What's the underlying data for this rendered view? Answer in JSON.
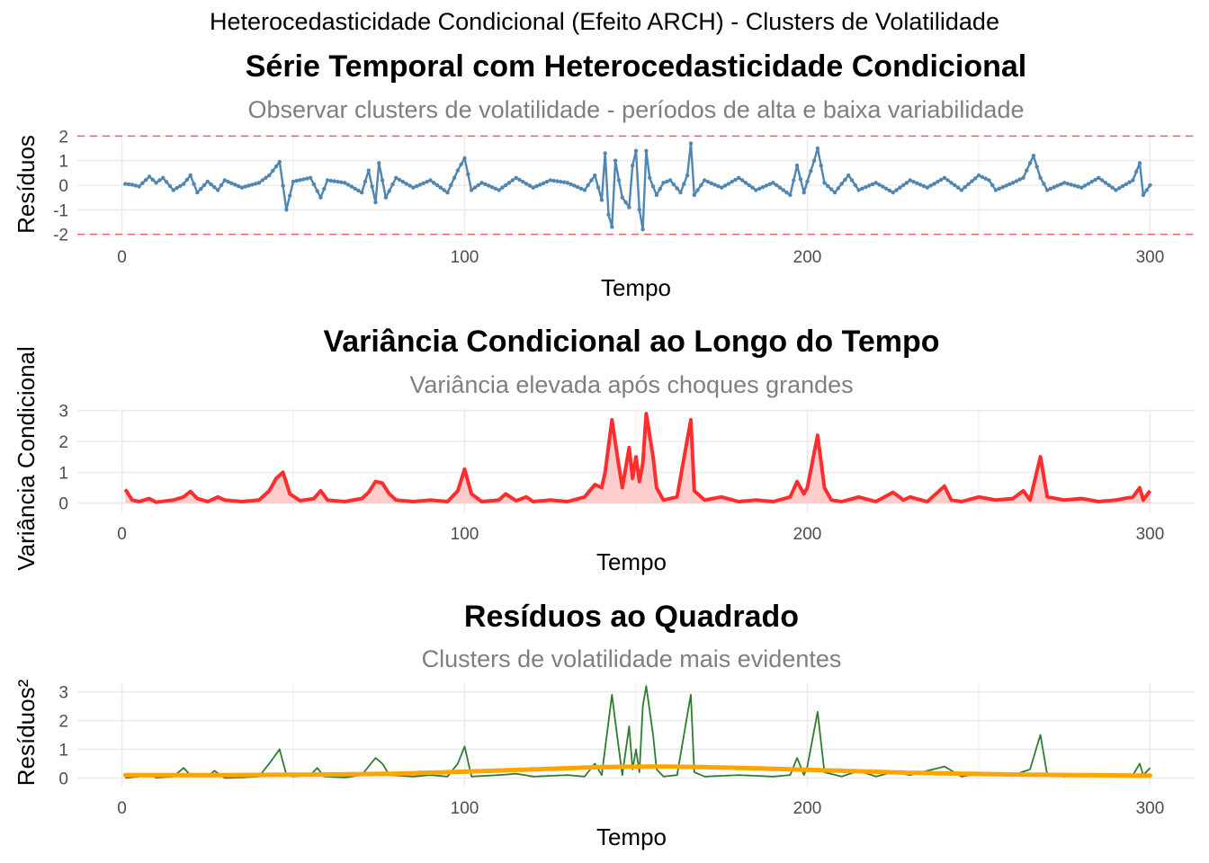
{
  "figure_title": "Heterocedasticidade Condicional (Efeito ARCH) - Clusters de Volatilidade",
  "colors": {
    "residual_line": "#4F86B2",
    "variance_line": "#FF2D2D",
    "variance_fill": "#FFC7C7",
    "squared_line": "#2E7D2E",
    "smooth_line": "#FFA500",
    "smooth_band": "#C8C8C8",
    "ref_line": "#F06060",
    "grid": "#EBEBEB",
    "title": "#000000",
    "subtitle": "#7F7F7F",
    "tick": "#4D4D4D"
  },
  "chart_data": [
    {
      "type": "line",
      "title": "Série Temporal com Heterocedasticidade Condicional",
      "subtitle": "Observar clusters de volatilidade - períodos de alta e baixa variabilidade",
      "xlabel": "Tempo",
      "ylabel": "Resíduos",
      "xlim": [
        -13,
        313
      ],
      "ylim": [
        -2.05,
        2.05
      ],
      "xticks": [
        0,
        100,
        200,
        300
      ],
      "yticks": [
        -2,
        -1,
        0,
        1,
        2
      ],
      "grid": true,
      "markers": true,
      "reference_lines": [
        2,
        -2
      ],
      "key_points": [
        [
          1,
          0.05
        ],
        [
          3,
          0.02
        ],
        [
          5,
          -0.05
        ],
        [
          8,
          0.35
        ],
        [
          10,
          0.1
        ],
        [
          12,
          0.3
        ],
        [
          15,
          -0.2
        ],
        [
          18,
          0.05
        ],
        [
          20,
          0.4
        ],
        [
          22,
          -0.3
        ],
        [
          25,
          0.15
        ],
        [
          28,
          -0.2
        ],
        [
          30,
          0.2
        ],
        [
          35,
          -0.1
        ],
        [
          40,
          0.1
        ],
        [
          43,
          0.4
        ],
        [
          46,
          0.95
        ],
        [
          48,
          -1.0
        ],
        [
          50,
          0.15
        ],
        [
          55,
          0.3
        ],
        [
          58,
          -0.5
        ],
        [
          60,
          0.2
        ],
        [
          65,
          0.1
        ],
        [
          70,
          -0.3
        ],
        [
          72,
          0.6
        ],
        [
          74,
          -0.7
        ],
        [
          75,
          0.9
        ],
        [
          77,
          -0.5
        ],
        [
          80,
          0.3
        ],
        [
          85,
          -0.1
        ],
        [
          90,
          0.2
        ],
        [
          95,
          -0.3
        ],
        [
          98,
          0.6
        ],
        [
          100,
          1.1
        ],
        [
          102,
          -0.2
        ],
        [
          105,
          0.1
        ],
        [
          110,
          -0.2
        ],
        [
          115,
          0.3
        ],
        [
          120,
          -0.1
        ],
        [
          125,
          0.2
        ],
        [
          130,
          0.1
        ],
        [
          135,
          -0.2
        ],
        [
          138,
          0.4
        ],
        [
          140,
          -0.6
        ],
        [
          141,
          1.3
        ],
        [
          142,
          -1.2
        ],
        [
          143,
          -1.7
        ],
        [
          144,
          1.0
        ],
        [
          145,
          0.2
        ],
        [
          146,
          -0.5
        ],
        [
          148,
          -0.9
        ],
        [
          149,
          0.8
        ],
        [
          150,
          1.4
        ],
        [
          151,
          -1.0
        ],
        [
          152,
          -1.8
        ],
        [
          153,
          1.4
        ],
        [
          154,
          0.3
        ],
        [
          156,
          -0.4
        ],
        [
          158,
          0.1
        ],
        [
          160,
          0.2
        ],
        [
          163,
          -0.3
        ],
        [
          165,
          0.4
        ],
        [
          166,
          1.7
        ],
        [
          167,
          -0.4
        ],
        [
          170,
          0.2
        ],
        [
          175,
          -0.1
        ],
        [
          180,
          0.3
        ],
        [
          185,
          -0.2
        ],
        [
          190,
          0.1
        ],
        [
          195,
          -0.4
        ],
        [
          197,
          0.8
        ],
        [
          199,
          -0.3
        ],
        [
          200,
          0.15
        ],
        [
          202,
          1.0
        ],
        [
          203,
          1.5
        ],
        [
          205,
          0.1
        ],
        [
          208,
          -0.3
        ],
        [
          212,
          0.4
        ],
        [
          215,
          -0.2
        ],
        [
          220,
          0.1
        ],
        [
          225,
          -0.3
        ],
        [
          230,
          0.2
        ],
        [
          235,
          -0.1
        ],
        [
          240,
          0.3
        ],
        [
          245,
          -0.2
        ],
        [
          250,
          0.4
        ],
        [
          253,
          0.2
        ],
        [
          255,
          -0.2
        ],
        [
          260,
          0.1
        ],
        [
          263,
          0.3
        ],
        [
          266,
          1.2
        ],
        [
          268,
          0.3
        ],
        [
          270,
          -0.2
        ],
        [
          275,
          0.1
        ],
        [
          280,
          -0.1
        ],
        [
          285,
          0.3
        ],
        [
          290,
          -0.2
        ],
        [
          295,
          0.2
        ],
        [
          297,
          0.9
        ],
        [
          298,
          -0.4
        ],
        [
          300,
          0.0
        ]
      ]
    },
    {
      "type": "area",
      "title": "Variância Condicional ao Longo do Tempo",
      "subtitle": "Variância elevada após choques grandes",
      "xlabel": "Tempo",
      "ylabel": "Variância Condicional",
      "xlim": [
        -13,
        313
      ],
      "ylim": [
        -0.3,
        3.05
      ],
      "xticks": [
        0,
        100,
        200,
        300
      ],
      "yticks": [
        0,
        1,
        2,
        3
      ],
      "grid": true,
      "key_points": [
        [
          1,
          0.45
        ],
        [
          3,
          0.1
        ],
        [
          5,
          0.05
        ],
        [
          8,
          0.15
        ],
        [
          10,
          0.03
        ],
        [
          15,
          0.1
        ],
        [
          18,
          0.2
        ],
        [
          20,
          0.38
        ],
        [
          22,
          0.15
        ],
        [
          25,
          0.05
        ],
        [
          28,
          0.2
        ],
        [
          30,
          0.1
        ],
        [
          35,
          0.05
        ],
        [
          40,
          0.1
        ],
        [
          43,
          0.4
        ],
        [
          45,
          0.8
        ],
        [
          47,
          1.0
        ],
        [
          49,
          0.3
        ],
        [
          52,
          0.08
        ],
        [
          56,
          0.15
        ],
        [
          58,
          0.4
        ],
        [
          60,
          0.1
        ],
        [
          65,
          0.05
        ],
        [
          70,
          0.15
        ],
        [
          72,
          0.35
        ],
        [
          74,
          0.7
        ],
        [
          76,
          0.65
        ],
        [
          78,
          0.3
        ],
        [
          80,
          0.1
        ],
        [
          85,
          0.05
        ],
        [
          90,
          0.1
        ],
        [
          95,
          0.05
        ],
        [
          98,
          0.4
        ],
        [
          100,
          1.1
        ],
        [
          102,
          0.3
        ],
        [
          105,
          0.05
        ],
        [
          110,
          0.1
        ],
        [
          112,
          0.3
        ],
        [
          115,
          0.08
        ],
        [
          118,
          0.2
        ],
        [
          120,
          0.05
        ],
        [
          125,
          0.1
        ],
        [
          130,
          0.05
        ],
        [
          135,
          0.2
        ],
        [
          138,
          0.6
        ],
        [
          140,
          0.5
        ],
        [
          141,
          1.0
        ],
        [
          143,
          2.7
        ],
        [
          145,
          1.2
        ],
        [
          146,
          0.5
        ],
        [
          148,
          1.8
        ],
        [
          149,
          0.8
        ],
        [
          150,
          1.5
        ],
        [
          151,
          0.7
        ],
        [
          152,
          1.3
        ],
        [
          153,
          2.9
        ],
        [
          155,
          1.5
        ],
        [
          156,
          0.5
        ],
        [
          158,
          0.1
        ],
        [
          162,
          0.2
        ],
        [
          166,
          2.7
        ],
        [
          167,
          0.4
        ],
        [
          170,
          0.1
        ],
        [
          175,
          0.2
        ],
        [
          180,
          0.05
        ],
        [
          185,
          0.1
        ],
        [
          190,
          0.05
        ],
        [
          195,
          0.2
        ],
        [
          197,
          0.7
        ],
        [
          199,
          0.3
        ],
        [
          200,
          0.5
        ],
        [
          203,
          2.2
        ],
        [
          205,
          0.5
        ],
        [
          207,
          0.1
        ],
        [
          210,
          0.05
        ],
        [
          215,
          0.2
        ],
        [
          220,
          0.05
        ],
        [
          225,
          0.35
        ],
        [
          228,
          0.1
        ],
        [
          230,
          0.2
        ],
        [
          235,
          0.05
        ],
        [
          240,
          0.55
        ],
        [
          242,
          0.1
        ],
        [
          245,
          0.05
        ],
        [
          250,
          0.2
        ],
        [
          255,
          0.1
        ],
        [
          260,
          0.15
        ],
        [
          263,
          0.4
        ],
        [
          265,
          0.1
        ],
        [
          268,
          1.5
        ],
        [
          270,
          0.2
        ],
        [
          275,
          0.1
        ],
        [
          280,
          0.15
        ],
        [
          285,
          0.05
        ],
        [
          290,
          0.1
        ],
        [
          295,
          0.2
        ],
        [
          297,
          0.5
        ],
        [
          298,
          0.1
        ],
        [
          300,
          0.4
        ]
      ]
    },
    {
      "type": "line",
      "title": "Resíduos ao Quadrado",
      "subtitle": "Clusters de volatilidade mais evidentes",
      "xlabel": "Tempo",
      "ylabel": "Resíduos²",
      "xlim": [
        -13,
        313
      ],
      "ylim": [
        -0.3,
        3.3
      ],
      "xticks": [
        0,
        100,
        200,
        300
      ],
      "yticks": [
        0,
        1,
        2,
        3
      ],
      "grid": true,
      "smooth": [
        [
          1,
          0.1
        ],
        [
          30,
          0.1
        ],
        [
          60,
          0.12
        ],
        [
          80,
          0.15
        ],
        [
          100,
          0.22
        ],
        [
          120,
          0.3
        ],
        [
          140,
          0.38
        ],
        [
          155,
          0.4
        ],
        [
          170,
          0.38
        ],
        [
          190,
          0.32
        ],
        [
          210,
          0.25
        ],
        [
          230,
          0.18
        ],
        [
          260,
          0.12
        ],
        [
          300,
          0.08
        ]
      ],
      "key_points": [
        [
          1,
          0.0
        ],
        [
          5,
          0.05
        ],
        [
          8,
          0.12
        ],
        [
          10,
          0.01
        ],
        [
          15,
          0.05
        ],
        [
          18,
          0.35
        ],
        [
          20,
          0.1
        ],
        [
          25,
          0.05
        ],
        [
          27,
          0.25
        ],
        [
          30,
          0.0
        ],
        [
          35,
          0.02
        ],
        [
          40,
          0.05
        ],
        [
          43,
          0.5
        ],
        [
          46,
          1.0
        ],
        [
          48,
          0.1
        ],
        [
          50,
          0.05
        ],
        [
          55,
          0.1
        ],
        [
          57,
          0.35
        ],
        [
          59,
          0.05
        ],
        [
          65,
          0.02
        ],
        [
          70,
          0.1
        ],
        [
          72,
          0.4
        ],
        [
          74,
          0.7
        ],
        [
          76,
          0.5
        ],
        [
          78,
          0.1
        ],
        [
          85,
          0.05
        ],
        [
          90,
          0.1
        ],
        [
          95,
          0.05
        ],
        [
          98,
          0.5
        ],
        [
          100,
          1.1
        ],
        [
          102,
          0.05
        ],
        [
          110,
          0.1
        ],
        [
          115,
          0.15
        ],
        [
          120,
          0.05
        ],
        [
          130,
          0.1
        ],
        [
          135,
          0.05
        ],
        [
          138,
          0.5
        ],
        [
          140,
          0.1
        ],
        [
          143,
          2.9
        ],
        [
          145,
          1.0
        ],
        [
          146,
          0.1
        ],
        [
          148,
          1.8
        ],
        [
          149,
          0.3
        ],
        [
          150,
          1.0
        ],
        [
          151,
          0.2
        ],
        [
          152,
          2.5
        ],
        [
          153,
          3.2
        ],
        [
          155,
          1.5
        ],
        [
          156,
          0.3
        ],
        [
          158,
          0.05
        ],
        [
          162,
          0.1
        ],
        [
          166,
          2.9
        ],
        [
          167,
          0.2
        ],
        [
          170,
          0.05
        ],
        [
          180,
          0.1
        ],
        [
          190,
          0.05
        ],
        [
          195,
          0.1
        ],
        [
          197,
          0.7
        ],
        [
          199,
          0.1
        ],
        [
          200,
          0.4
        ],
        [
          203,
          2.3
        ],
        [
          205,
          0.2
        ],
        [
          210,
          0.05
        ],
        [
          215,
          0.25
        ],
        [
          220,
          0.05
        ],
        [
          225,
          0.2
        ],
        [
          230,
          0.1
        ],
        [
          240,
          0.4
        ],
        [
          245,
          0.05
        ],
        [
          250,
          0.15
        ],
        [
          260,
          0.1
        ],
        [
          265,
          0.3
        ],
        [
          268,
          1.5
        ],
        [
          270,
          0.1
        ],
        [
          275,
          0.05
        ],
        [
          280,
          0.1
        ],
        [
          290,
          0.05
        ],
        [
          295,
          0.1
        ],
        [
          297,
          0.5
        ],
        [
          298,
          0.1
        ],
        [
          300,
          0.35
        ]
      ]
    }
  ]
}
